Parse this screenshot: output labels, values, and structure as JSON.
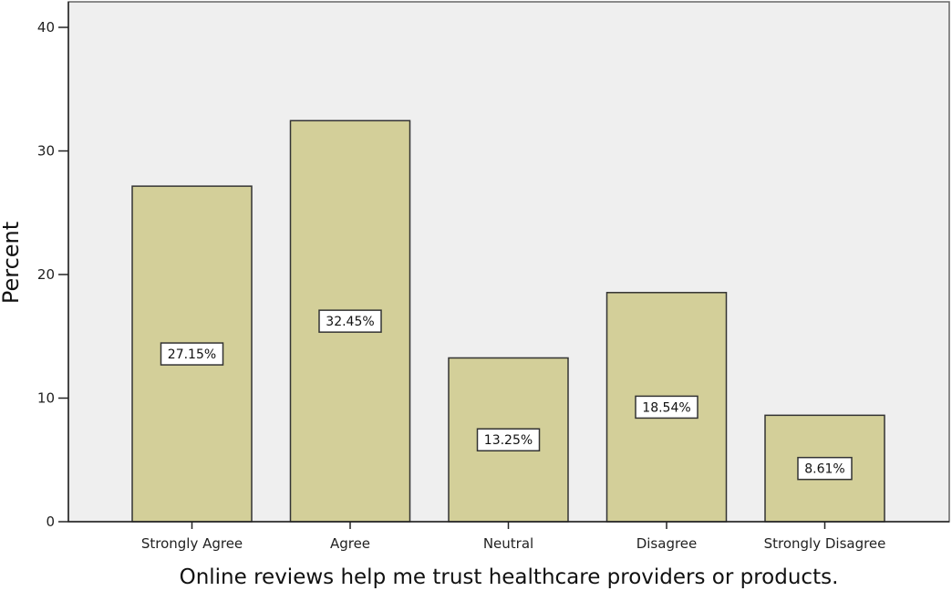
{
  "chart_data": {
    "type": "bar",
    "title": "",
    "xlabel": "Online reviews help me trust healthcare providers or products.",
    "ylabel": "Percent",
    "categories": [
      "Strongly Agree",
      "Agree",
      "Neutral",
      "Disagree",
      "Strongly Disagree"
    ],
    "values": [
      27.15,
      32.45,
      13.25,
      18.54,
      8.61
    ],
    "data_labels": [
      "27.15%",
      "32.45%",
      "13.25%",
      "18.54%",
      "8.61%"
    ],
    "ylim": [
      0,
      40
    ],
    "yticks": [
      0,
      10,
      20,
      30,
      40
    ],
    "grid": false,
    "colors": {
      "bar": "#d3cf99",
      "plot_bg": "#efefef",
      "axis": "#222222"
    }
  }
}
